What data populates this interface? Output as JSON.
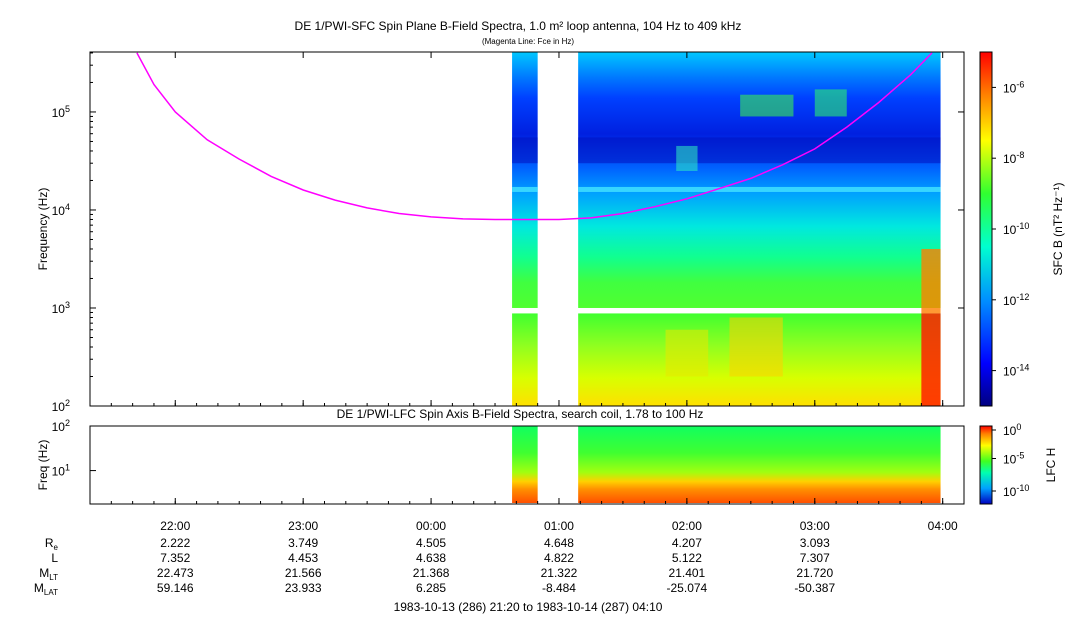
{
  "chart_data": [
    {
      "type": "heatmap",
      "title": "DE 1/PWI-SFC  Spin Plane B-Field Spectra, 1.0 m² loop antenna, 104 Hz to 409 kHz",
      "subtitle": "(Magenta Line: Fce in Hz)",
      "ylabel": "Frequency (Hz)",
      "yscale": "log",
      "ylim": [
        100,
        409000
      ],
      "yticks": [
        "10^2",
        "10^3",
        "10^4",
        "10^5"
      ],
      "colorbar": {
        "label": "SFC B (nT² Hz⁻¹)",
        "scale": "log",
        "range": [
          1e-15,
          1e-05
        ],
        "ticks": [
          "10^-6",
          "10^-8",
          "10^-10",
          "10^-12",
          "10^-14"
        ]
      },
      "data_intervals": [
        [
          "00:38",
          "00:50"
        ],
        [
          "01:09",
          "03:59"
        ]
      ],
      "series": [
        {
          "name": "Fce",
          "color": "#ff00ff",
          "x": [
            "21:42",
            "21:50",
            "22:00",
            "22:15",
            "22:30",
            "22:45",
            "23:00",
            "23:15",
            "23:30",
            "23:45",
            "00:00",
            "00:15",
            "00:30",
            "00:45",
            "01:00",
            "01:15",
            "01:30",
            "01:45",
            "02:00",
            "02:15",
            "02:30",
            "02:45",
            "03:00",
            "03:15",
            "03:30",
            "03:45",
            "03:55"
          ],
          "y": [
            400000,
            190000,
            100000,
            52000,
            33000,
            22000,
            16000,
            12600,
            10500,
            9200,
            8500,
            8100,
            8000,
            8000,
            8000,
            8300,
            9200,
            10800,
            13000,
            16500,
            21000,
            29000,
            42000,
            70000,
            125000,
            240000,
            400000
          ]
        }
      ]
    },
    {
      "type": "heatmap",
      "title": "DE 1/PWI-LFC  Spin Axis B-Field Spectra, search coil, 1.78 to 100 Hz",
      "ylabel": "Freq (Hz)",
      "yscale": "log",
      "ylim": [
        1.78,
        100
      ],
      "yticks": [
        "10^1",
        "10^2"
      ],
      "colorbar": {
        "label": "LFC H",
        "scale": "log",
        "range": [
          1e-12,
          1
        ],
        "ticks": [
          "10^0",
          "10^-5",
          "10^-10"
        ]
      },
      "data_intervals": [
        [
          "00:38",
          "00:50"
        ],
        [
          "01:09",
          "03:59"
        ]
      ]
    }
  ],
  "time_axis": {
    "tick_labels": [
      "22:00",
      "23:00",
      "00:00",
      "01:00",
      "02:00",
      "03:00",
      "04:00"
    ]
  },
  "ephemeris": {
    "rows": [
      {
        "label": "R",
        "sub": "e",
        "values": [
          "2.222",
          "3.749",
          "4.505",
          "4.648",
          "4.207",
          "3.093"
        ]
      },
      {
        "label": "L",
        "sub": "",
        "values": [
          "7.352",
          "4.453",
          "4.638",
          "4.822",
          "5.122",
          "7.307"
        ]
      },
      {
        "label": "M",
        "sub": "LT",
        "values": [
          "22.473",
          "21.566",
          "21.368",
          "21.322",
          "21.401",
          "21.720"
        ]
      },
      {
        "label": "M",
        "sub": "LAT",
        "values": [
          "59.146",
          "23.933",
          "6.285",
          "-8.484",
          "-25.074",
          "-50.387"
        ]
      }
    ]
  },
  "footer": "1983-10-13 (286) 21:20 to 1983-10-14 (287) 04:10"
}
